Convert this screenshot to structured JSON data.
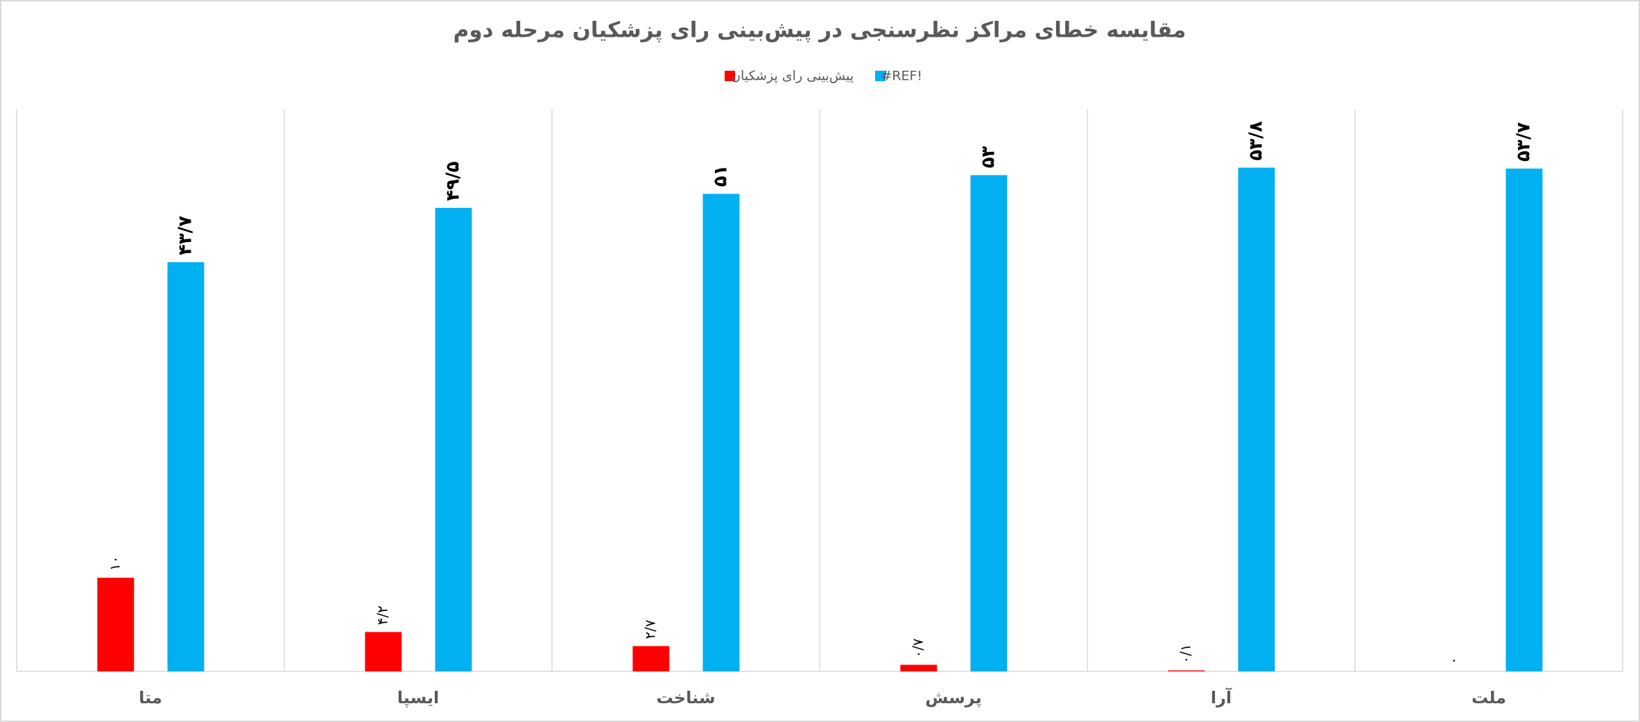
{
  "chart_data": {
    "type": "bar",
    "title": "مقایسه خطای مراکز نظرسنجی در پیش‌بینی رای پزشکیان مرحله دوم",
    "categories": [
      "متا",
      "ایسپا",
      "شناخت",
      "پرسش",
      "آرا",
      "ملت"
    ],
    "series": [
      {
        "name": "پیش‌بینی رای پزشکیان",
        "color": "#ff0000",
        "values": [
          10,
          4.2,
          2.7,
          0.7,
          0.1,
          0
        ],
        "value_labels": [
          "۱۰",
          "۴/۲",
          "۲/۷",
          "۰/۷",
          "۰/۱",
          "۰"
        ]
      },
      {
        "name": "#REF!",
        "color": "#00b0f0",
        "values": [
          43.7,
          49.5,
          51,
          53,
          53.8,
          53.7
        ],
        "value_labels": [
          "۴۳/۷",
          "۴۹/۵",
          "۵۱",
          "۵۳",
          "۵۳/۸",
          "۵۳/۷"
        ]
      }
    ],
    "ylim": [
      0,
      60
    ]
  }
}
